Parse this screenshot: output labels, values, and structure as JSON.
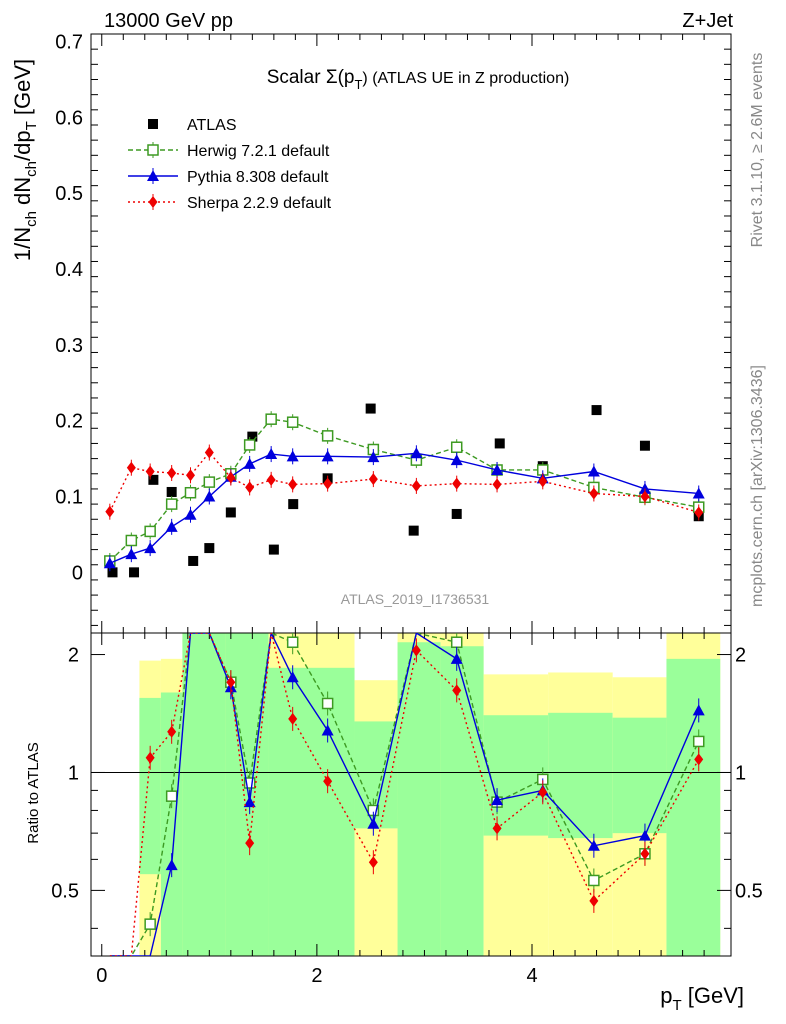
{
  "header": {
    "left": "13000 GeV pp",
    "right": "Z+Jet"
  },
  "side_labels": {
    "top": "Rivet 3.1.10, ≥ 2.6M events",
    "bottom": "mcplots.cern.ch [arXiv:1306.3436]"
  },
  "chart_data": {
    "type": "scatter",
    "title": "Scalar Σ(p_T) (ATLAS UE in Z production)",
    "title_main": "Scalar Σ(p",
    "title_sub": "T",
    "title_tail": ") (ATLAS UE in Z production)",
    "watermark": "ATLAS_2019_I1736531",
    "ylabel": "1/N_ch dN_ch/dp_T [GeV]",
    "ylabel_parts": [
      "1/N",
      "ch",
      " dN",
      "ch",
      "/dp",
      "T",
      " [GeV]"
    ],
    "xlabel": "p_T [GeV]",
    "xlabel_parts": [
      "p",
      "T",
      " [GeV]"
    ],
    "ratio_ylabel": "Ratio to ATLAS",
    "xlim": [
      -0.1,
      5.85
    ],
    "ylim": [
      -0.08,
      0.71
    ],
    "ratio_ylim": [
      0.34,
      2.27
    ],
    "x_ticks": [
      0,
      2,
      4
    ],
    "x_tick_labels": [
      "0",
      "2",
      "4"
    ],
    "y_ticks": [
      0,
      0.1,
      0.2,
      0.3,
      0.4,
      0.5,
      0.6,
      0.7
    ],
    "y_tick_labels": [
      "0",
      "0.1",
      "0.2",
      "0.3",
      "0.4",
      "0.5",
      "0.6",
      "0.7"
    ],
    "ratio_ticks": [
      0.5,
      1,
      2
    ],
    "ratio_tick_labels": [
      "0.5",
      "1",
      "2"
    ],
    "legend_position": "top-left",
    "x": [
      0.075,
      0.25,
      0.45,
      0.65,
      0.85,
      1.05,
      1.25,
      1.45,
      1.7,
      2.0,
      2.35,
      2.75,
      3.15,
      3.55,
      3.95,
      4.35,
      4.8,
      5.3
    ],
    "bin_edges": [
      0.0,
      0.15,
      0.35,
      0.55,
      0.75,
      0.95,
      1.15,
      1.35,
      1.55,
      1.85,
      2.15,
      2.55,
      2.95,
      3.35,
      3.75,
      4.15,
      4.55,
      5.05,
      5.55
    ],
    "x_mc": [
      0.075,
      0.275,
      0.45,
      0.65,
      0.825,
      1.0,
      1.2,
      1.375,
      1.575,
      1.775,
      2.1,
      2.525,
      2.925,
      3.3,
      3.675,
      4.1,
      4.575,
      5.05,
      5.55
    ],
    "ratio_bands": [
      {
        "x0": 0.35,
        "x1": 0.55,
        "green": [
          0.55,
          1.55
        ],
        "yellow": [
          0.34,
          1.93
        ]
      },
      {
        "x0": 0.55,
        "x1": 0.75,
        "green": [
          0.34,
          1.6
        ],
        "yellow": [
          0.34,
          1.95
        ]
      },
      {
        "x0": 0.75,
        "x1": 1.15,
        "green": [
          0.34,
          2.27
        ],
        "yellow": [
          0.34,
          2.27
        ]
      },
      {
        "x0": 1.15,
        "x1": 1.55,
        "green": [
          0.34,
          2.27
        ],
        "yellow": [
          0.34,
          2.27
        ]
      },
      {
        "x0": 1.55,
        "x1": 2.35,
        "green": [
          0.34,
          1.85
        ],
        "yellow": [
          0.34,
          2.27
        ]
      },
      {
        "x0": 2.35,
        "x1": 2.75,
        "green": [
          0.72,
          1.35
        ],
        "yellow": [
          0.34,
          1.72
        ]
      },
      {
        "x0": 2.75,
        "x1": 3.15,
        "green": [
          0.34,
          2.15
        ],
        "yellow": [
          0.34,
          2.27
        ]
      },
      {
        "x0": 3.15,
        "x1": 3.55,
        "green": [
          0.34,
          2.1
        ],
        "yellow": [
          0.34,
          2.27
        ]
      },
      {
        "x0": 3.55,
        "x1": 4.15,
        "green": [
          0.69,
          1.4
        ],
        "yellow": [
          0.34,
          1.78
        ]
      },
      {
        "x0": 4.15,
        "x1": 4.75,
        "green": [
          0.68,
          1.42
        ],
        "yellow": [
          0.34,
          1.8
        ]
      },
      {
        "x0": 4.75,
        "x1": 5.25,
        "green": [
          0.7,
          1.38
        ],
        "yellow": [
          0.34,
          1.75
        ]
      },
      {
        "x0": 5.25,
        "x1": 5.75,
        "green": [
          0.34,
          1.95
        ],
        "yellow": [
          0.34,
          2.27
        ]
      }
    ],
    "series": [
      {
        "name": "ATLAS",
        "marker": "square",
        "color": "#000000",
        "x": [
          0.1,
          0.3,
          0.48,
          0.65,
          0.85,
          1.0,
          1.2,
          1.4,
          1.6,
          1.78,
          2.1,
          2.5,
          2.9,
          3.3,
          3.7,
          4.1,
          4.6,
          5.05,
          5.55
        ],
        "values": [
          0.0,
          0.0,
          0.122,
          0.106,
          0.015,
          0.032,
          0.079,
          0.179,
          0.03,
          0.09,
          0.124,
          0.216,
          0.055,
          0.077,
          0.17,
          0.14,
          0.214,
          0.167,
          0.074
        ]
      },
      {
        "name": "Herwig 7.2.1 default",
        "marker": "open-square",
        "line": "dashed",
        "color": "#3d9a22",
        "values": [
          0.015,
          0.042,
          0.054,
          0.09,
          0.105,
          0.119,
          0.13,
          0.168,
          0.202,
          0.198,
          0.18,
          0.162,
          0.148,
          0.165,
          0.135,
          0.135,
          0.112,
          0.099,
          0.086
        ],
        "ratio": [
          0.0,
          0.0,
          0.41,
          0.87,
          2.27,
          2.27,
          1.7,
          0.94,
          2.27,
          2.15,
          1.5,
          0.8,
          2.27,
          2.15,
          0.84,
          0.96,
          0.53,
          0.62,
          1.2
        ]
      },
      {
        "name": "Pythia 8.308 default",
        "marker": "triangle",
        "line": "solid",
        "color": "#0000dd",
        "values": [
          0.012,
          0.024,
          0.032,
          0.06,
          0.076,
          0.1,
          0.126,
          0.143,
          0.156,
          0.153,
          0.153,
          0.152,
          0.157,
          0.148,
          0.135,
          0.124,
          0.133,
          0.11,
          0.104
        ],
        "ratio": [
          0.0,
          0.0,
          0.0,
          0.58,
          2.27,
          2.27,
          1.65,
          0.84,
          2.27,
          1.75,
          1.28,
          0.74,
          2.27,
          1.95,
          0.85,
          0.9,
          0.65,
          0.69,
          1.44
        ]
      },
      {
        "name": "Sherpa 2.2.9 default",
        "marker": "diamond",
        "line": "dotted",
        "color": "#ee0000",
        "values": [
          0.08,
          0.138,
          0.133,
          0.131,
          0.128,
          0.158,
          0.125,
          0.112,
          0.122,
          0.116,
          0.117,
          0.123,
          0.114,
          0.117,
          0.116,
          0.12,
          0.104,
          0.1,
          0.079
        ],
        "ratio": [
          0.0,
          0.0,
          1.09,
          1.27,
          2.27,
          2.27,
          1.7,
          0.66,
          2.27,
          1.37,
          0.95,
          0.59,
          2.05,
          1.62,
          0.72,
          0.89,
          0.47,
          0.62,
          1.08
        ]
      }
    ]
  }
}
